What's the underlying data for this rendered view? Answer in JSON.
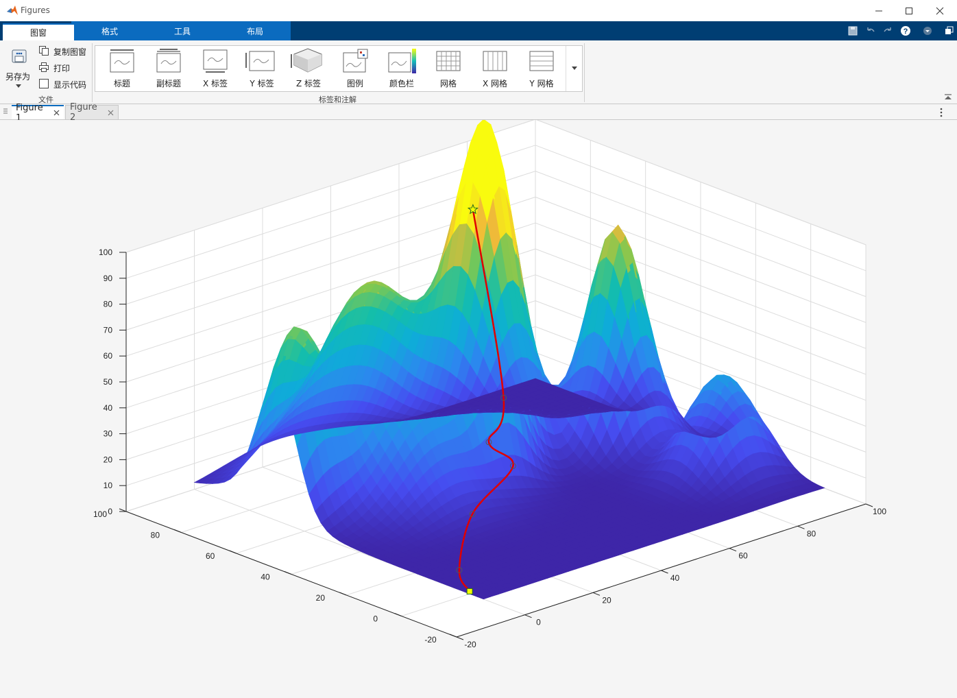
{
  "window": {
    "title": "Figures"
  },
  "ribbon_tabs": [
    {
      "label": "图窗",
      "active": true
    },
    {
      "label": "格式",
      "active": false
    },
    {
      "label": "工具",
      "active": false
    },
    {
      "label": "布局",
      "active": false
    }
  ],
  "file_group": {
    "save_as_label": "另存为",
    "copy_figure_label": "复制图窗",
    "print_label": "打印",
    "show_code_label": "显示代码",
    "show_code_checked": false,
    "group_label": "文件"
  },
  "annotations_group": {
    "items": [
      "标题",
      "副标题",
      "X 标签",
      "Y 标签",
      "Z 标签",
      "图例",
      "颜色栏",
      "网格",
      "X 网格",
      "Y 网格"
    ],
    "group_label": "标签和注解"
  },
  "figure_tabs": [
    {
      "label": "Figure 1",
      "active": true
    },
    {
      "label": "Figure 2",
      "active": false
    }
  ],
  "chart_data": {
    "type": "surface",
    "colormap": "parula",
    "axis_ticks": {
      "z": [
        "0",
        "10",
        "20",
        "30",
        "40",
        "50",
        "60",
        "70",
        "80",
        "90",
        "100"
      ],
      "x": [
        "-20",
        "0",
        "20",
        "40",
        "60",
        "80",
        "100"
      ],
      "y": [
        "-20",
        "0",
        "20",
        "40",
        "60",
        "80",
        "100"
      ]
    },
    "xlim": [
      -20,
      100
    ],
    "ylim": [
      -20,
      100
    ],
    "zlim": [
      0,
      100
    ],
    "grid": true,
    "path": {
      "color": "#e00000",
      "start_marker": "square",
      "end_marker": "star"
    }
  }
}
